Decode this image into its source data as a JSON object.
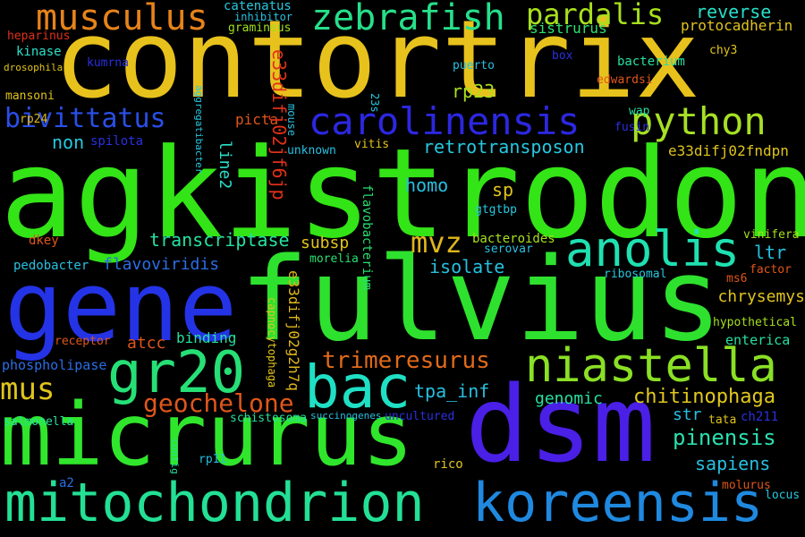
{
  "words": [
    {
      "text": "contortrix",
      "color": "#e8c21c"
    },
    {
      "text": "agkistrodon",
      "color": "#33e416"
    },
    {
      "text": "fulvius",
      "color": "#2ee12e"
    },
    {
      "text": "gene",
      "color": "#2433e6"
    },
    {
      "text": "micrurus",
      "color": "#30e62c"
    },
    {
      "text": "dsm",
      "color": "#4a1fe6"
    },
    {
      "text": "mitochondrion",
      "color": "#23e095"
    },
    {
      "text": "koreensis",
      "color": "#1f89e0"
    },
    {
      "text": "bac",
      "color": "#1fe0c4"
    },
    {
      "text": "gr20",
      "color": "#26e076"
    },
    {
      "text": "niastella",
      "color": "#8ae024"
    },
    {
      "text": "anolis",
      "color": "#1fe0b0"
    },
    {
      "text": "carolinensis",
      "color": "#2c27e0"
    },
    {
      "text": "python",
      "color": "#a6e024"
    },
    {
      "text": "musculus",
      "color": "#e6831a"
    },
    {
      "text": "zebrafish",
      "color": "#26e08a"
    },
    {
      "text": "pardalis",
      "color": "#a8e01c"
    },
    {
      "text": "bivittatus",
      "color": "#2a4ee6"
    },
    {
      "text": "mus",
      "color": "#e0c41c"
    },
    {
      "text": "mvz",
      "color": "#e0b61c"
    },
    {
      "text": "geochelone",
      "color": "#e0561a"
    },
    {
      "text": "trimeresurus",
      "color": "#e06a1a"
    },
    {
      "text": "pinensis",
      "color": "#2ae0b0"
    },
    {
      "text": "chitinophaga",
      "color": "#e0c81c"
    },
    {
      "text": "sapiens",
      "color": "#26c0e0"
    },
    {
      "text": "reverse",
      "color": "#26e0c8"
    },
    {
      "text": "protocadherin",
      "color": "#e0c41c"
    },
    {
      "text": "sistrurus",
      "color": "#2ae070"
    },
    {
      "text": "catenatus",
      "color": "#26c8e0"
    },
    {
      "text": "inhibitor",
      "color": "#26c0e0"
    },
    {
      "text": "gramineus",
      "color": "#a0e01c"
    },
    {
      "text": "heparinus",
      "color": "#e0301a"
    },
    {
      "text": "kinase",
      "color": "#2ae0c8"
    },
    {
      "text": "drosophila",
      "color": "#e0c41c"
    },
    {
      "text": "kumrna",
      "color": "#2a30e0"
    },
    {
      "text": "puerto",
      "color": "#26c0e0"
    },
    {
      "text": "box",
      "color": "#2a30e0"
    },
    {
      "text": "bacterium",
      "color": "#26e0a0"
    },
    {
      "text": "chy3",
      "color": "#e0c41c"
    },
    {
      "text": "edwardsi",
      "color": "#e0561a"
    },
    {
      "text": "mansoni",
      "color": "#e0c41c"
    },
    {
      "text": "23s",
      "color": "#26c8e0"
    },
    {
      "text": "rp23",
      "color": "#a8e01c"
    },
    {
      "text": "rp24",
      "color": "#e0b61c"
    },
    {
      "text": "spilota",
      "color": "#2a30e0"
    },
    {
      "text": "non",
      "color": "#26c8e0"
    },
    {
      "text": "picta",
      "color": "#e0561a"
    },
    {
      "text": "wap",
      "color": "#26e0a0"
    },
    {
      "text": "fusin",
      "color": "#2a30e0"
    },
    {
      "text": "e33difj02jf6jp",
      "color": "#e0301a"
    },
    {
      "text": "mouse",
      "color": "#26c0e0"
    },
    {
      "text": "aggregatibacter",
      "color": "#26c8e0"
    },
    {
      "text": "retrotransposon",
      "color": "#26c8e0"
    },
    {
      "text": "e33difj02fndpn",
      "color": "#e0c41c"
    },
    {
      "text": "unknown",
      "color": "#26c0e0"
    },
    {
      "text": "vitis",
      "color": "#e0c41c"
    },
    {
      "text": "line2",
      "color": "#2ae0c8"
    },
    {
      "text": "homo",
      "color": "#26c0e0"
    },
    {
      "text": "sp",
      "color": "#e0c41c"
    },
    {
      "text": "gtgtbp",
      "color": "#26c8e0"
    },
    {
      "text": "flavobacterium",
      "color": "#26e070"
    },
    {
      "text": "transcriptase",
      "color": "#26e0a0"
    },
    {
      "text": "subsp",
      "color": "#e0c41c"
    },
    {
      "text": "bacteroides",
      "color": "#a8e01c"
    },
    {
      "text": "serovar",
      "color": "#26c0e0"
    },
    {
      "text": "vinifera",
      "color": "#a8e01c"
    },
    {
      "text": "ltr",
      "color": "#26c0e0"
    },
    {
      "text": "dkey",
      "color": "#e0561a"
    },
    {
      "text": "flavoviridis",
      "color": "#2a6ee6"
    },
    {
      "text": "isolate",
      "color": "#26c0e0"
    },
    {
      "text": "e33difj02g2h7q",
      "color": "#e0b61c"
    },
    {
      "text": "morelia",
      "color": "#26e070"
    },
    {
      "text": "factor",
      "color": "#e0561a"
    },
    {
      "text": "pedobacter",
      "color": "#26c0e0"
    },
    {
      "text": "ribosomal",
      "color": "#26c8e0"
    },
    {
      "text": "ms6",
      "color": "#e0561a"
    },
    {
      "text": "chrysemys",
      "color": "#e0c41c"
    },
    {
      "text": "atcc",
      "color": "#e0561a"
    },
    {
      "text": "capnocytophaga",
      "color": "#e0c41c"
    },
    {
      "text": "hypothetical",
      "color": "#a8e01c"
    },
    {
      "text": "receptor",
      "color": "#e0561a"
    },
    {
      "text": "binding",
      "color": "#26e0a0"
    },
    {
      "text": "enterica",
      "color": "#26e0a0"
    },
    {
      "text": "phospholipase",
      "color": "#2a6ee6"
    },
    {
      "text": "tpa_inf",
      "color": "#26c0e0"
    },
    {
      "text": "genomic",
      "color": "#26e0a0"
    },
    {
      "text": "str",
      "color": "#26c0e0"
    },
    {
      "text": "salmonella",
      "color": "#26e0a0"
    },
    {
      "text": "schistosoma",
      "color": "#26e0a0"
    },
    {
      "text": "succinogenes",
      "color": "#26c0e0"
    },
    {
      "text": "uncultured",
      "color": "#2a30e0"
    },
    {
      "text": "tata",
      "color": "#e0c41c"
    },
    {
      "text": "ch211",
      "color": "#2a30e0"
    },
    {
      "text": "contig",
      "color": "#26e0a0"
    },
    {
      "text": "rp11",
      "color": "#26c0e0"
    },
    {
      "text": "rico",
      "color": "#e0c41c"
    },
    {
      "text": "a2",
      "color": "#2a6ee6"
    },
    {
      "text": "molurus",
      "color": "#e0561a"
    },
    {
      "text": "locus",
      "color": "#26c8e0"
    }
  ]
}
